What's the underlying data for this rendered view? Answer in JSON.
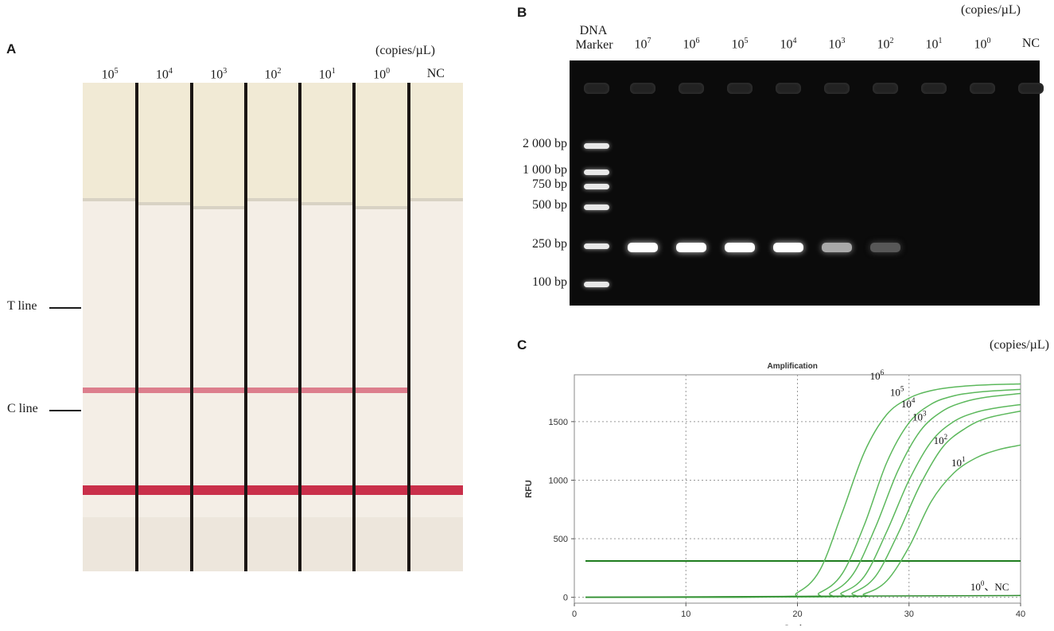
{
  "figure": {
    "panel_a": {
      "letter": "A",
      "unit": "(copies/µL)",
      "lanes": [
        {
          "base": "10",
          "exp": "5"
        },
        {
          "base": "10",
          "exp": "4"
        },
        {
          "base": "10",
          "exp": "3"
        },
        {
          "base": "10",
          "exp": "2"
        },
        {
          "base": "10",
          "exp": "1"
        },
        {
          "base": "10",
          "exp": "0"
        },
        {
          "base": "NC",
          "exp": ""
        }
      ],
      "t_line_label": "T line",
      "c_line_label": "C line",
      "t_line_visible": [
        true,
        true,
        true,
        true,
        true,
        true,
        false
      ],
      "colors": {
        "t_line": "#d76a7c",
        "c_line": "#c92f4a"
      }
    },
    "panel_b": {
      "letter": "B",
      "unit": "(copies/µL)",
      "marker_label_line1": "DNA",
      "marker_label_line2": "Marker",
      "lanes": [
        {
          "base": "10",
          "exp": "7"
        },
        {
          "base": "10",
          "exp": "6"
        },
        {
          "base": "10",
          "exp": "5"
        },
        {
          "base": "10",
          "exp": "4"
        },
        {
          "base": "10",
          "exp": "3"
        },
        {
          "base": "10",
          "exp": "2"
        },
        {
          "base": "10",
          "exp": "1"
        },
        {
          "base": "10",
          "exp": "0"
        },
        {
          "base": "NC",
          "exp": ""
        }
      ],
      "ladder_sizes": [
        "2 000 bp",
        "1 000 bp",
        "750 bp",
        "500 bp",
        "250 bp",
        "100 bp"
      ],
      "band_intensity": [
        1.0,
        1.0,
        1.0,
        1.0,
        0.6,
        0.22,
        0.0,
        0.0,
        0.0
      ]
    },
    "panel_c": {
      "letter": "C",
      "unit": "(copies/µL)"
    }
  },
  "chart_data": {
    "type": "line",
    "title": "Amplification",
    "xlabel": "Cycles",
    "ylabel": "RFU",
    "xlim": [
      0,
      40
    ],
    "ylim": [
      -50,
      1900
    ],
    "xticks": [
      0,
      10,
      20,
      30,
      40
    ],
    "yticks": [
      0,
      500,
      1000,
      1500
    ],
    "grid": true,
    "threshold": 310,
    "series": [
      {
        "label_base": "10",
        "label_exp": "6",
        "x": [
          1,
          18,
          20,
          22,
          24,
          26,
          28,
          30,
          32,
          34,
          36,
          38,
          40
        ],
        "y": [
          0,
          5,
          40,
          230,
          720,
          1240,
          1560,
          1700,
          1765,
          1795,
          1810,
          1818,
          1822
        ]
      },
      {
        "label_base": "10",
        "label_exp": "5",
        "x": [
          1,
          20,
          22,
          24,
          26,
          28,
          30,
          32,
          34,
          36,
          38,
          40
        ],
        "y": [
          0,
          5,
          40,
          200,
          620,
          1150,
          1490,
          1650,
          1720,
          1750,
          1765,
          1775
        ]
      },
      {
        "label_base": "10",
        "label_exp": "4",
        "x": [
          1,
          21,
          23,
          25,
          27,
          29,
          31,
          33,
          35,
          37,
          40
        ],
        "y": [
          0,
          5,
          40,
          200,
          600,
          1080,
          1420,
          1590,
          1670,
          1710,
          1740
        ]
      },
      {
        "label_base": "10",
        "label_exp": "3",
        "x": [
          1,
          22,
          24,
          26,
          28,
          30,
          32,
          34,
          36,
          38,
          40
        ],
        "y": [
          0,
          5,
          40,
          180,
          560,
          1000,
          1330,
          1500,
          1580,
          1620,
          1645
        ]
      },
      {
        "label_base": "10",
        "label_exp": "2",
        "x": [
          1,
          23,
          25,
          27,
          29,
          31,
          33,
          35,
          37,
          40
        ],
        "y": [
          0,
          5,
          40,
          180,
          540,
          960,
          1280,
          1440,
          1530,
          1590
        ]
      },
      {
        "label_base": "10",
        "label_exp": "1",
        "x": [
          1,
          24,
          26,
          28,
          30,
          32,
          34,
          36,
          38,
          40
        ],
        "y": [
          0,
          5,
          30,
          140,
          430,
          820,
          1060,
          1190,
          1260,
          1300
        ]
      },
      {
        "label_base": "10",
        "label_exp": "0",
        "label_suffix": "、NC",
        "x": [
          1,
          20,
          40
        ],
        "y": [
          0,
          8,
          15
        ]
      }
    ]
  }
}
